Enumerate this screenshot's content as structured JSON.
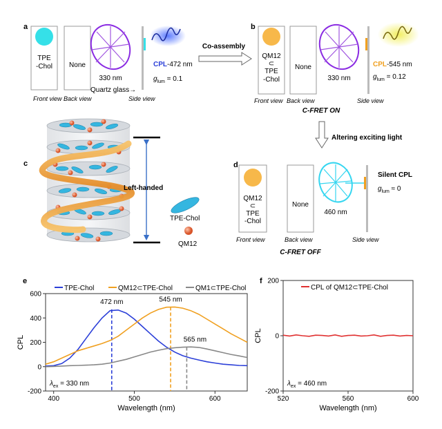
{
  "panel_a": {
    "label": "a",
    "front_text": [
      "TPE",
      "-Chol"
    ],
    "back_text": "None",
    "excitation": "330 nm",
    "quartz": "Quartz glass→",
    "cpl_prefix": "CPL",
    "cpl_suffix": "-472 nm",
    "g_lum": "g",
    "g_sub": "lum",
    "g_value": " = 0.1",
    "views": [
      "Front view",
      "Back view",
      "Side view"
    ],
    "colors": {
      "emitter": "#35e0e8",
      "cpl_glow": "#6688ff",
      "cpl_text": "#2b3fd8",
      "excite_ring": "#8a2be2"
    }
  },
  "arrow_ab": {
    "label": "Co-assembly"
  },
  "panel_b": {
    "label": "b",
    "front_text": [
      "QM12",
      "⊂",
      "TPE",
      "-Chol"
    ],
    "back_text": "None",
    "excitation": "330 nm",
    "cpl_prefix": "CPL",
    "cpl_suffix": "-545 nm",
    "g_lum": "g",
    "g_sub": "lum",
    "g_value": " = 0.12",
    "views": [
      "Front view",
      "Back view",
      "Side view"
    ],
    "state": "C-FRET ON",
    "colors": {
      "emitter": "#f7b84a",
      "cpl_glow": "#f5f07a",
      "cpl_text": "#f0a020"
    }
  },
  "arrow_bd": {
    "label": "Altering exciting light"
  },
  "panel_c": {
    "label": "c",
    "helix": "Left-handed",
    "legend": [
      "TPE-Chol",
      "QM12"
    ],
    "colors": {
      "disc": "#cfd3d8",
      "tpe": "#35b6e0",
      "qm12": "#e8764a",
      "helix": "#f0a040"
    }
  },
  "panel_d": {
    "label": "d",
    "front_text": [
      "QM12",
      "⊂",
      "TPE",
      "-Chol"
    ],
    "back_text": "None",
    "excitation": "460 nm",
    "silent": "Silent CPL",
    "g_lum": "g",
    "g_sub": "lum",
    "g_value": " ≈ 0",
    "views": [
      "Front view",
      "Back view",
      "Side view"
    ],
    "state": "C-FRET OFF",
    "colors": {
      "excite_ring": "#35d6f0"
    }
  },
  "chart_data": [
    {
      "panel": "e",
      "type": "line",
      "xlabel": "Wavelength (nm)",
      "ylabel": "CPL",
      "xlim": [
        390,
        640
      ],
      "ylim": [
        -200,
        600
      ],
      "xticks": [
        400,
        500,
        600
      ],
      "yticks": [
        -200,
        0,
        200,
        400,
        600
      ],
      "legend_position": "top",
      "annotation": {
        "lambda": "λ",
        "sub": "ex",
        "text": " = 330 nm"
      },
      "peaks": [
        {
          "x": 472,
          "y": 470,
          "label": "472 nm",
          "color": "#2b3fd8"
        },
        {
          "x": 545,
          "y": 490,
          "label": "545 nm",
          "color": "#f0a020"
        },
        {
          "x": 565,
          "y": 160,
          "label": "565 nm",
          "color": "#888888"
        }
      ],
      "series": [
        {
          "name": "TPE-Chol",
          "color": "#2b3fd8",
          "x": [
            390,
            400,
            410,
            420,
            430,
            440,
            450,
            460,
            470,
            480,
            490,
            500,
            510,
            520,
            530,
            540,
            550,
            560,
            570,
            580,
            590,
            600,
            610,
            620,
            630,
            640
          ],
          "y": [
            5,
            8,
            25,
            70,
            140,
            230,
            320,
            400,
            460,
            465,
            440,
            390,
            330,
            270,
            210,
            160,
            120,
            90,
            70,
            55,
            40,
            30,
            20,
            15,
            10,
            8
          ]
        },
        {
          "name": "QM12⊂TPE-Chol",
          "color": "#f0a020",
          "x": [
            390,
            400,
            410,
            420,
            430,
            440,
            450,
            460,
            470,
            480,
            490,
            500,
            510,
            520,
            530,
            540,
            550,
            560,
            570,
            580,
            590,
            600,
            610,
            620,
            630,
            640
          ],
          "y": [
            20,
            40,
            70,
            100,
            130,
            150,
            170,
            190,
            215,
            250,
            300,
            350,
            400,
            440,
            470,
            488,
            490,
            480,
            460,
            430,
            390,
            350,
            310,
            270,
            235,
            200
          ]
        },
        {
          "name": "QM1⊂TPE-Chol",
          "color": "#888888",
          "x": [
            390,
            400,
            410,
            420,
            430,
            440,
            450,
            460,
            470,
            480,
            490,
            500,
            510,
            520,
            530,
            540,
            550,
            560,
            570,
            580,
            590,
            600,
            610,
            620,
            630,
            640
          ],
          "y": [
            0,
            2,
            5,
            8,
            10,
            12,
            15,
            20,
            30,
            45,
            60,
            80,
            100,
            120,
            135,
            148,
            155,
            160,
            162,
            158,
            145,
            130,
            115,
            100,
            88,
            75
          ]
        }
      ]
    },
    {
      "panel": "f",
      "type": "line",
      "xlabel": "Wavelength (nm)",
      "ylabel": "CPL",
      "xlim": [
        520,
        600
      ],
      "ylim": [
        -200,
        200
      ],
      "xticks": [
        520,
        560,
        600
      ],
      "yticks": [
        -200,
        0,
        200
      ],
      "legend_position": "top",
      "annotation": {
        "lambda": "λ",
        "sub": "ex",
        "text": " = 460 nm"
      },
      "series": [
        {
          "name": "CPL of QM12⊂TPE-Chol",
          "color": "#e03030",
          "x": [
            520,
            524,
            528,
            532,
            536,
            540,
            544,
            548,
            552,
            556,
            560,
            564,
            568,
            572,
            576,
            580,
            584,
            588,
            592,
            596,
            600
          ],
          "y": [
            2,
            -1,
            3,
            0,
            -2,
            2,
            1,
            -1,
            3,
            -2,
            1,
            2,
            -1,
            0,
            3,
            -2,
            1,
            2,
            -1,
            1,
            0
          ]
        }
      ]
    }
  ]
}
